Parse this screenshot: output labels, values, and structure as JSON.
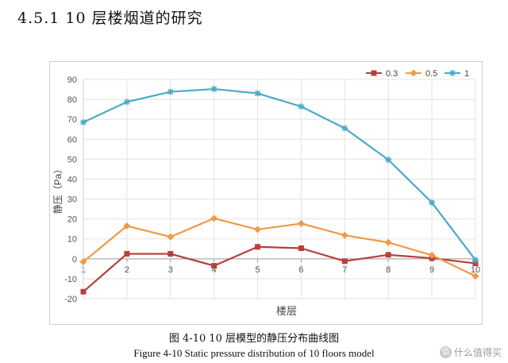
{
  "heading": "4.5.1  10 层楼烟道的研究",
  "caption_cn": "图 4-10  10 层模型的静压分布曲线图",
  "caption_en": "Figure 4-10     Static pressure distribution of 10 floors model",
  "watermark": "值 什么值得买",
  "watermark_badge": "值",
  "chart_data": {
    "type": "line",
    "title": "",
    "xlabel": "楼层",
    "ylabel": "静压（Pa）",
    "x": [
      1,
      2,
      3,
      4,
      5,
      6,
      7,
      8,
      9,
      10
    ],
    "x_tick_labels": [
      "1",
      "2",
      "3",
      "4",
      "5",
      "6",
      "7",
      "8",
      "9",
      "10"
    ],
    "ylim": [
      -20,
      90
    ],
    "y_ticks": [
      -20,
      -10,
      0,
      10,
      20,
      30,
      40,
      50,
      60,
      70,
      80,
      90
    ],
    "grid": true,
    "legend_position": "top-right",
    "series": [
      {
        "name": "0.3",
        "color": "#b5413b",
        "marker": "square",
        "values": [
          -16.5,
          2.5,
          2.5,
          -3.5,
          6,
          5.3,
          -1.2,
          2,
          0.3,
          -2.3
        ]
      },
      {
        "name": "0.5",
        "color": "#ee9a48",
        "marker": "diamond",
        "values": [
          -1.5,
          16.5,
          11,
          20.3,
          14.7,
          17.7,
          11.8,
          8.2,
          1.8,
          -8.7
        ]
      },
      {
        "name": "1",
        "color": "#4baac6",
        "marker": "asterisk",
        "values": [
          68.5,
          78.7,
          83.8,
          85.2,
          83,
          76.4,
          65.5,
          49.7,
          28.2,
          -0.6
        ]
      }
    ]
  }
}
